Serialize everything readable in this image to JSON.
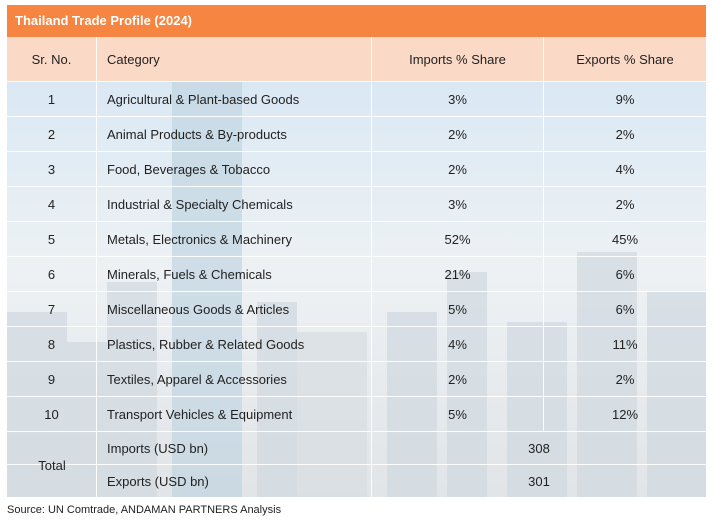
{
  "header": {
    "title": "Thailand Trade Profile (2024)"
  },
  "table": {
    "columns": [
      "Sr. No.",
      "Category",
      "Imports % Share",
      "Exports % Share"
    ],
    "rows": [
      [
        "1",
        "Agricultural & Plant-based Goods",
        "3%",
        "9%"
      ],
      [
        "2",
        "Animal Products & By-products",
        "2%",
        "2%"
      ],
      [
        "3",
        "Food, Beverages & Tobacco",
        "2%",
        "4%"
      ],
      [
        "4",
        "Industrial & Specialty Chemicals",
        "3%",
        "2%"
      ],
      [
        "5",
        "Metals, Electronics & Machinery",
        "52%",
        "45%"
      ],
      [
        "6",
        "Minerals, Fuels & Chemicals",
        "21%",
        "6%"
      ],
      [
        "7",
        "Miscellaneous Goods & Articles",
        "5%",
        "6%"
      ],
      [
        "8",
        "Plastics, Rubber & Related Goods",
        "4%",
        "11%"
      ],
      [
        "9",
        "Textiles, Apparel & Accessories",
        "2%",
        "2%"
      ],
      [
        "10",
        "Transport Vehicles & Equipment",
        "5%",
        "12%"
      ]
    ],
    "total": {
      "label": "Total",
      "rows": [
        [
          "Imports (USD bn)",
          "308"
        ],
        [
          "Exports (USD bn)",
          "301"
        ]
      ]
    }
  },
  "footer": {
    "source": "Source: UN Comtrade, ANDAMAN PARTNERS Analysis"
  }
}
